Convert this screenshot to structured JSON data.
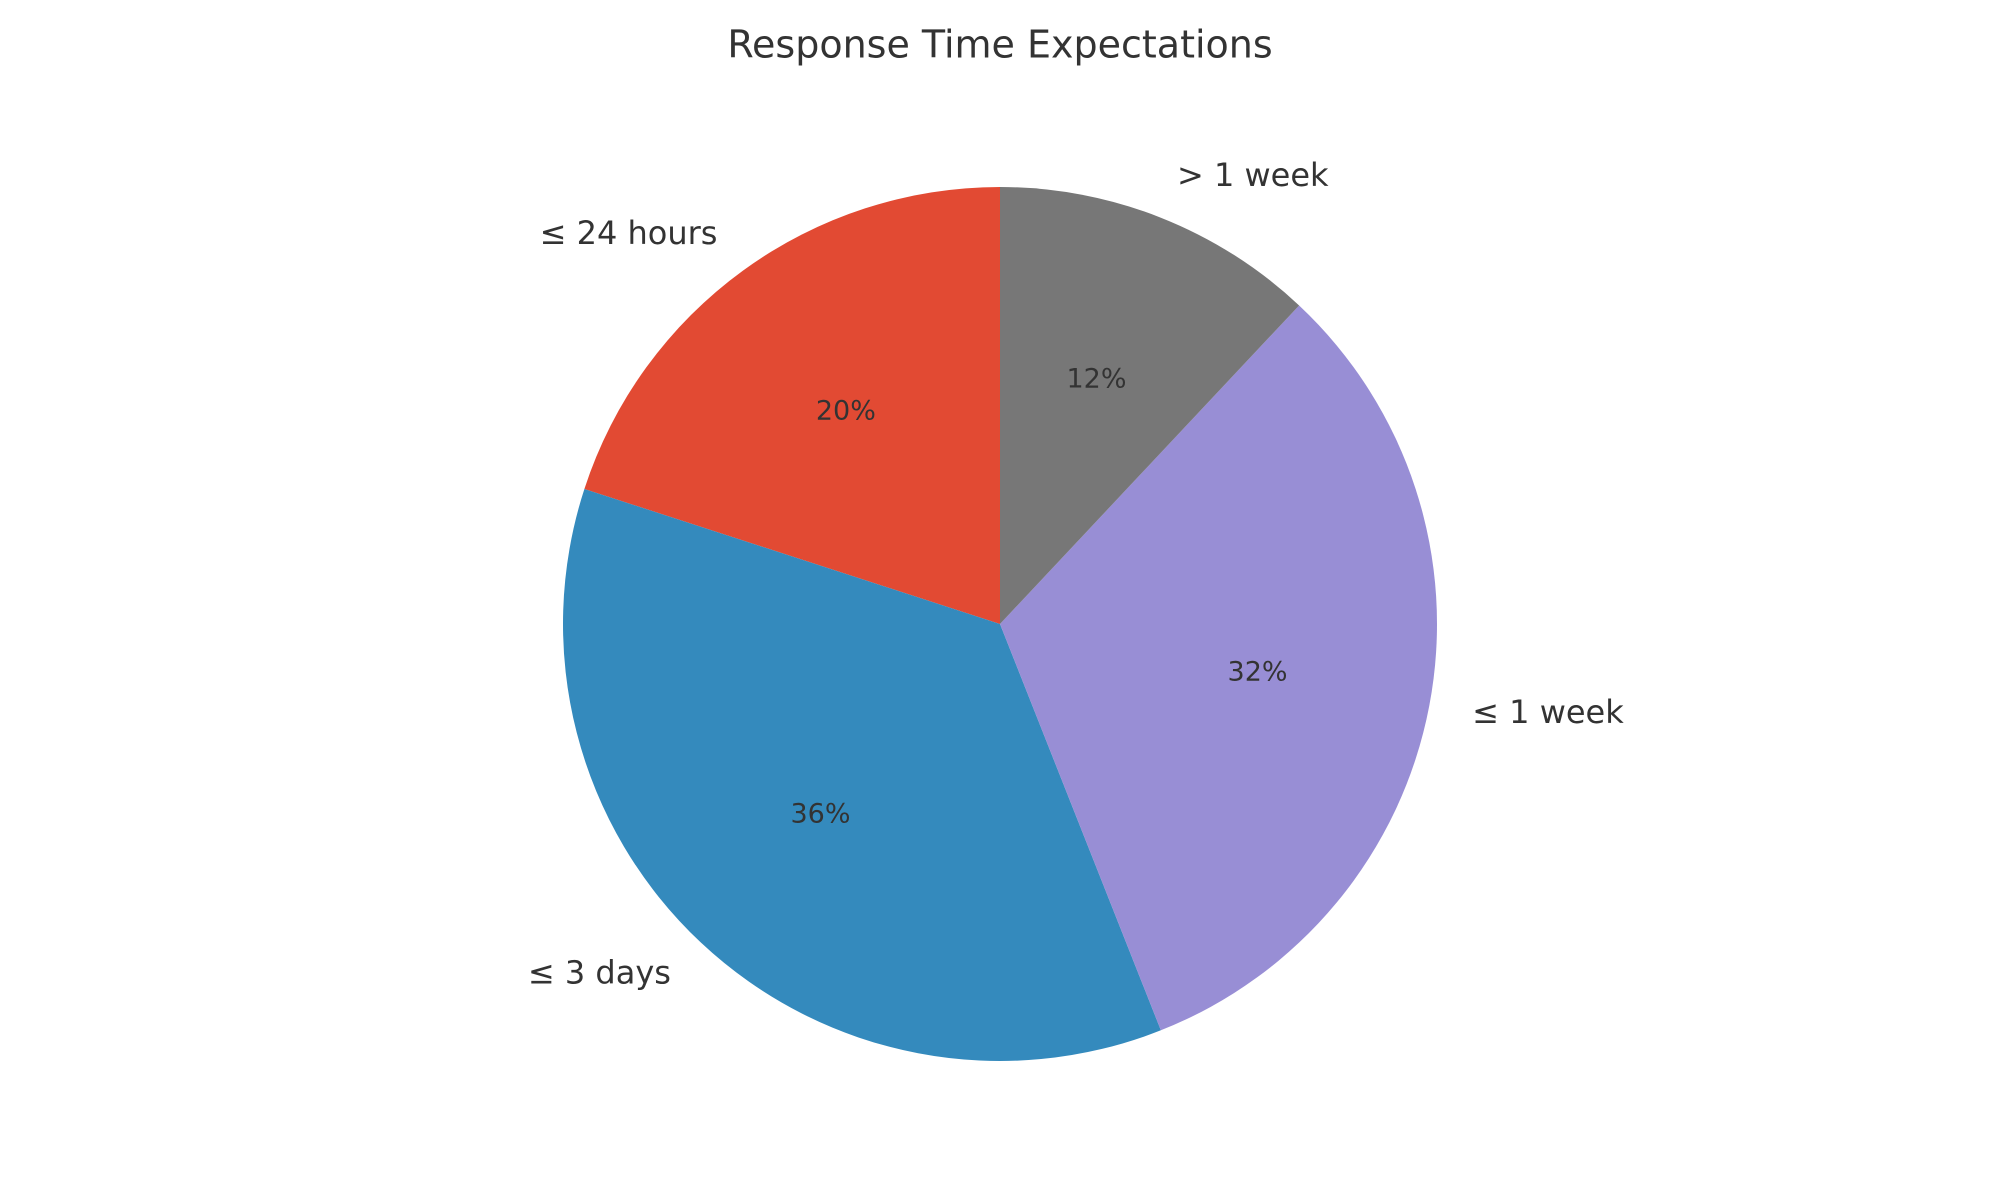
{
  "chart_data": {
    "type": "pie",
    "title": "Response Time Expectations",
    "categories": [
      "≤ 24 hours",
      "≤ 3 days",
      "≤ 1 week",
      "> 1 week"
    ],
    "values": [
      20,
      36,
      32,
      12
    ],
    "value_labels": [
      "20%",
      "36%",
      "32%",
      "12%"
    ],
    "colors": [
      "#E24A33",
      "#348ABD",
      "#988ED5",
      "#777777"
    ]
  }
}
